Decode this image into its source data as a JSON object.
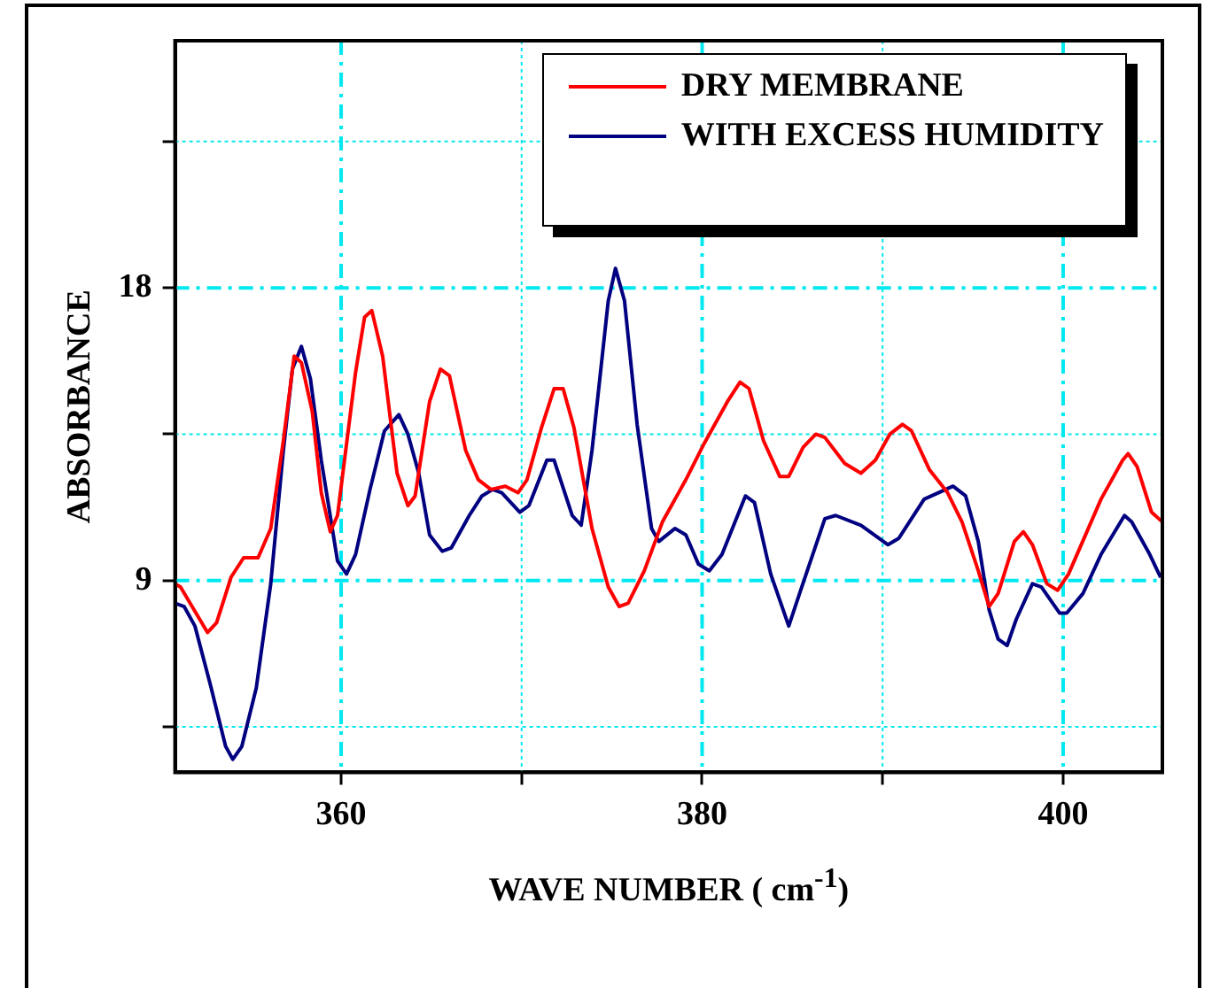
{
  "chart_data": {
    "type": "line",
    "xlabel": "WAVE NUMBER ( cm$^{-1}$)",
    "ylabel": "ABSORBANCE",
    "xlim": [
      350.8,
      405.5
    ],
    "ylim": [
      3.1,
      25.6
    ],
    "xticks": [
      360,
      {
        "value": 370,
        "label": null
      },
      380,
      {
        "value": 390,
        "label": null
      },
      400
    ],
    "yticks": [
      {
        "value": 4.5,
        "label": null
      },
      9,
      {
        "value": 13.5,
        "label": null
      },
      18,
      {
        "value": 22.5,
        "label": null
      }
    ],
    "grid": true,
    "legend": "top right",
    "marker": "none",
    "line_style": "solid",
    "series": [
      {
        "name": "DRY MEMBRANE",
        "color": "#ff0000",
        "x": [
          350.8,
          351.1,
          352.6,
          353.1,
          353.9,
          354.6,
          355.4,
          356.1,
          356.8,
          357.4,
          357.8,
          358.4,
          358.9,
          359.4,
          359.8,
          360.8,
          361.3,
          361.7,
          362.3,
          363.1,
          363.7,
          364.1,
          364.9,
          365.5,
          366.0,
          366.9,
          367.6,
          368.3,
          369.1,
          369.8,
          370.3,
          371.1,
          371.8,
          372.3,
          372.9,
          373.9,
          374.8,
          375.4,
          375.9,
          376.8,
          377.8,
          378.1,
          379.1,
          380.1,
          381.4,
          382.1,
          382.6,
          383.4,
          384.3,
          384.8,
          385.6,
          386.3,
          386.8,
          387.9,
          388.8,
          389.6,
          390.4,
          391.1,
          391.6,
          392.6,
          393.6,
          394.4,
          395.3,
          395.9,
          396.4,
          397.3,
          397.8,
          398.3,
          399.1,
          399.7,
          400.3,
          402.1,
          403.3,
          403.6,
          404.1,
          404.9,
          405.5
        ],
        "values": [
          8.9,
          8.8,
          7.4,
          7.7,
          9.1,
          9.7,
          9.7,
          10.6,
          13.3,
          15.9,
          15.7,
          14.2,
          11.7,
          10.5,
          11.0,
          15.4,
          17.1,
          17.3,
          15.9,
          12.3,
          11.3,
          11.6,
          14.5,
          15.5,
          15.3,
          13.0,
          12.1,
          11.8,
          11.9,
          11.7,
          12.1,
          13.7,
          14.9,
          14.9,
          13.7,
          10.6,
          8.8,
          8.2,
          8.3,
          9.3,
          10.8,
          11.1,
          12.1,
          13.2,
          14.5,
          15.1,
          14.9,
          13.3,
          12.2,
          12.2,
          13.1,
          13.5,
          13.4,
          12.6,
          12.3,
          12.7,
          13.5,
          13.8,
          13.6,
          12.4,
          11.7,
          10.8,
          9.3,
          8.2,
          8.6,
          10.2,
          10.5,
          10.1,
          8.9,
          8.7,
          9.2,
          11.5,
          12.7,
          12.9,
          12.5,
          11.1,
          10.8
        ]
      },
      {
        "name": "WITH EXCESS HUMIDITY",
        "color": "#000080",
        "x": [
          350.8,
          351.3,
          351.9,
          352.8,
          353.6,
          354.0,
          354.5,
          355.3,
          356.1,
          356.8,
          357.3,
          357.8,
          358.3,
          358.9,
          359.8,
          360.3,
          360.8,
          361.6,
          362.4,
          363.2,
          363.7,
          364.3,
          364.9,
          365.6,
          366.1,
          367.1,
          367.8,
          368.4,
          368.9,
          369.9,
          370.4,
          371.4,
          371.8,
          372.8,
          373.3,
          373.9,
          374.8,
          375.2,
          375.7,
          376.4,
          377.2,
          377.6,
          378.5,
          379.1,
          379.8,
          380.4,
          381.1,
          382.4,
          382.9,
          383.8,
          384.8,
          385.4,
          386.8,
          387.4,
          388.8,
          390.3,
          390.9,
          392.3,
          393.9,
          394.6,
          395.3,
          395.9,
          396.4,
          396.9,
          397.4,
          398.3,
          398.8,
          399.8,
          400.2,
          401.1,
          402.1,
          403.4,
          403.8,
          404.8,
          405.4
        ],
        "values": [
          8.3,
          8.2,
          7.6,
          5.7,
          3.9,
          3.5,
          3.9,
          5.7,
          8.9,
          13.0,
          15.5,
          16.2,
          15.2,
          12.7,
          9.6,
          9.2,
          9.8,
          11.8,
          13.6,
          14.1,
          13.5,
          12.3,
          10.4,
          9.9,
          10.0,
          11.0,
          11.6,
          11.8,
          11.7,
          11.1,
          11.3,
          12.7,
          12.7,
          11.0,
          10.7,
          13.0,
          17.6,
          18.6,
          17.6,
          13.8,
          10.6,
          10.2,
          10.6,
          10.4,
          9.5,
          9.3,
          9.8,
          11.6,
          11.4,
          9.2,
          7.6,
          8.6,
          10.9,
          11.0,
          10.7,
          10.1,
          10.3,
          11.5,
          11.9,
          11.6,
          10.2,
          8.1,
          7.2,
          7.0,
          7.8,
          8.9,
          8.8,
          8.0,
          8.0,
          8.6,
          9.8,
          11.0,
          10.8,
          9.8,
          9.1
        ]
      }
    ]
  }
}
